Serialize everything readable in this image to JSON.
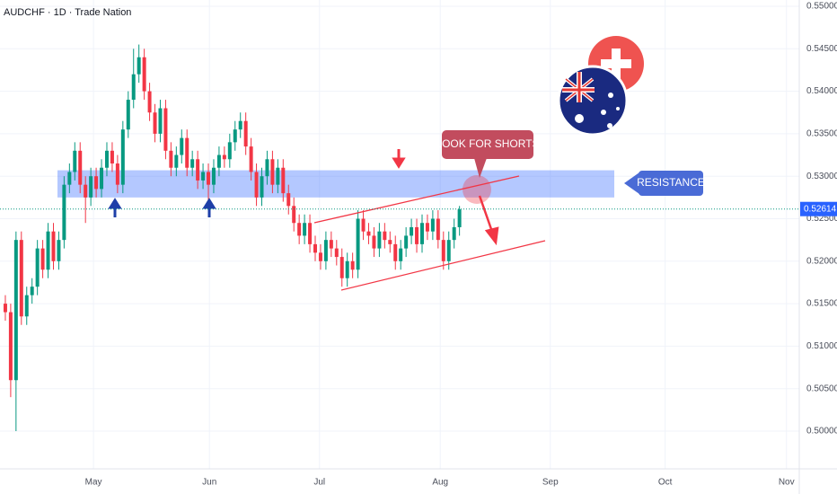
{
  "chart_data": {
    "type": "candlestick",
    "title": "AUDCHF · 1D · Trade Nation",
    "up_color": "#089981",
    "down_color": "#f23645",
    "categories": [
      null,
      null,
      null,
      null,
      null,
      null,
      null,
      null,
      null,
      null,
      null,
      null,
      null,
      null,
      null,
      null,
      null,
      null,
      null,
      null,
      null,
      null,
      null,
      null,
      null,
      null,
      null,
      null,
      null,
      null,
      null,
      null,
      null,
      null,
      null,
      null,
      null,
      null,
      null,
      null,
      null,
      null,
      null,
      null,
      null,
      null,
      null,
      null,
      null,
      null,
      null,
      null,
      null,
      null,
      null,
      null,
      null,
      null,
      null,
      null,
      null,
      null,
      null,
      null,
      null,
      null,
      null,
      null,
      null,
      null,
      null,
      null,
      null,
      null,
      null,
      null,
      null,
      null,
      null,
      null,
      null,
      null,
      null,
      null,
      null,
      null
    ],
    "open": [
      0.515,
      0.514,
      0.506,
      0.5225,
      0.5135,
      0.516,
      0.517,
      0.5215,
      0.519,
      0.5235,
      0.52,
      0.5225,
      0.529,
      0.5305,
      0.533,
      0.529,
      0.5275,
      0.53,
      0.5285,
      0.531,
      0.533,
      0.5315,
      0.529,
      0.5355,
      0.539,
      0.542,
      0.544,
      0.54,
      0.5375,
      0.535,
      0.538,
      0.533,
      0.531,
      0.5325,
      0.5345,
      0.531,
      0.532,
      0.5295,
      0.5305,
      0.529,
      0.531,
      0.5325,
      0.532,
      0.534,
      0.5355,
      0.5365,
      0.5335,
      0.5305,
      0.5275,
      0.53,
      0.532,
      0.529,
      0.531,
      0.528,
      0.5265,
      0.5245,
      0.523,
      0.5245,
      0.522,
      0.521,
      0.52,
      0.5225,
      0.5215,
      0.5205,
      0.518,
      0.52,
      0.519,
      0.525,
      0.5235,
      0.523,
      0.5215,
      0.5235,
      0.5225,
      0.522,
      0.52,
      0.5215,
      0.523,
      0.524,
      0.522,
      0.5245,
      0.5235,
      0.525,
      0.5225,
      0.52,
      0.5225,
      0.524
    ],
    "high": [
      0.516,
      0.515,
      0.5235,
      0.5235,
      0.517,
      0.518,
      0.5225,
      0.5225,
      0.5245,
      0.5245,
      0.5235,
      0.53,
      0.5315,
      0.534,
      0.534,
      0.53,
      0.531,
      0.531,
      0.532,
      0.534,
      0.534,
      0.5325,
      0.5365,
      0.54,
      0.545,
      0.5455,
      0.545,
      0.541,
      0.5385,
      0.539,
      0.539,
      0.534,
      0.5335,
      0.5355,
      0.5355,
      0.533,
      0.533,
      0.5315,
      0.5315,
      0.532,
      0.5335,
      0.5335,
      0.535,
      0.5365,
      0.5375,
      0.5375,
      0.5345,
      0.5315,
      0.531,
      0.533,
      0.533,
      0.532,
      0.532,
      0.529,
      0.5275,
      0.5255,
      0.5255,
      0.5255,
      0.523,
      0.522,
      0.5235,
      0.5235,
      0.5225,
      0.5215,
      0.521,
      0.521,
      0.526,
      0.526,
      0.5245,
      0.524,
      0.5245,
      0.5245,
      0.5235,
      0.523,
      0.5225,
      0.524,
      0.525,
      0.525,
      0.5255,
      0.5255,
      0.526,
      0.526,
      0.5235,
      0.5235,
      0.525,
      0.5265
    ],
    "low": [
      0.513,
      0.504,
      0.5,
      0.5125,
      0.5125,
      0.515,
      0.516,
      0.518,
      0.518,
      0.519,
      0.519,
      0.5215,
      0.528,
      0.5295,
      0.528,
      0.5245,
      0.5265,
      0.5275,
      0.5275,
      0.53,
      0.5305,
      0.528,
      0.528,
      0.5345,
      0.538,
      0.541,
      0.539,
      0.5365,
      0.534,
      0.534,
      0.532,
      0.53,
      0.53,
      0.5315,
      0.53,
      0.53,
      0.5285,
      0.5285,
      0.527,
      0.528,
      0.53,
      0.531,
      0.531,
      0.533,
      0.5345,
      0.5325,
      0.5295,
      0.5265,
      0.5265,
      0.529,
      0.528,
      0.528,
      0.527,
      0.5255,
      0.5235,
      0.522,
      0.522,
      0.521,
      0.52,
      0.519,
      0.519,
      0.5205,
      0.5195,
      0.517,
      0.517,
      0.518,
      0.518,
      0.5225,
      0.522,
      0.5205,
      0.5205,
      0.5215,
      0.521,
      0.519,
      0.519,
      0.5205,
      0.522,
      0.521,
      0.521,
      0.5225,
      0.5225,
      0.5215,
      0.519,
      0.519,
      0.5215,
      0.523
    ],
    "close": [
      0.514,
      0.506,
      0.5225,
      0.5135,
      0.516,
      0.517,
      0.5215,
      0.519,
      0.5235,
      0.52,
      0.5225,
      0.529,
      0.5305,
      0.533,
      0.529,
      0.5275,
      0.53,
      0.5285,
      0.531,
      0.533,
      0.5315,
      0.529,
      0.5355,
      0.539,
      0.542,
      0.544,
      0.54,
      0.5375,
      0.535,
      0.538,
      0.533,
      0.531,
      0.5325,
      0.5345,
      0.531,
      0.532,
      0.5295,
      0.5305,
      0.529,
      0.531,
      0.5325,
      0.532,
      0.534,
      0.5355,
      0.5365,
      0.5335,
      0.5305,
      0.5275,
      0.53,
      0.532,
      0.529,
      0.531,
      0.528,
      0.5265,
      0.5245,
      0.523,
      0.5245,
      0.522,
      0.521,
      0.52,
      0.5225,
      0.5215,
      0.5205,
      0.518,
      0.52,
      0.519,
      0.525,
      0.5235,
      0.523,
      0.5215,
      0.5235,
      0.5225,
      0.522,
      0.52,
      0.5215,
      0.523,
      0.524,
      0.522,
      0.5245,
      0.5235,
      0.525,
      0.5225,
      0.52,
      0.5225,
      0.524,
      0.5261
    ],
    "xlim": [
      -1,
      148.6
    ],
    "xticks": [
      {
        "value": 16.5,
        "label": "May"
      },
      {
        "value": 38.2,
        "label": "Jun"
      },
      {
        "value": 58.8,
        "label": "Jul"
      },
      {
        "value": 81.4,
        "label": "Aug"
      },
      {
        "value": 102.0,
        "label": "Sep"
      },
      {
        "value": 123.5,
        "label": "Oct"
      },
      {
        "value": 146.2,
        "label": "Nov"
      }
    ],
    "ylim": [
      0.49556,
      0.55074
    ],
    "yticks": [
      {
        "value": 0.5,
        "label": "0.50000"
      },
      {
        "value": 0.505,
        "label": "0.50500"
      },
      {
        "value": 0.51,
        "label": "0.51000"
      },
      {
        "value": 0.515,
        "label": "0.51500"
      },
      {
        "value": 0.52,
        "label": "0.52000"
      },
      {
        "value": 0.525,
        "label": "0.52500"
      },
      {
        "value": 0.53,
        "label": "0.53000"
      },
      {
        "value": 0.535,
        "label": "0.53500"
      },
      {
        "value": 0.54,
        "label": "0.54000"
      },
      {
        "value": 0.545,
        "label": "0.54500"
      },
      {
        "value": 0.55,
        "label": "0.55000"
      }
    ],
    "grid": true,
    "last_price": {
      "value": 0.52614,
      "label": "0.52614"
    },
    "resistance_zone": [
      0.5275,
      0.5307
    ],
    "annotations": {
      "shorts": "LOOK FOR SHORTS",
      "resistance": "RESISTANCE"
    }
  }
}
